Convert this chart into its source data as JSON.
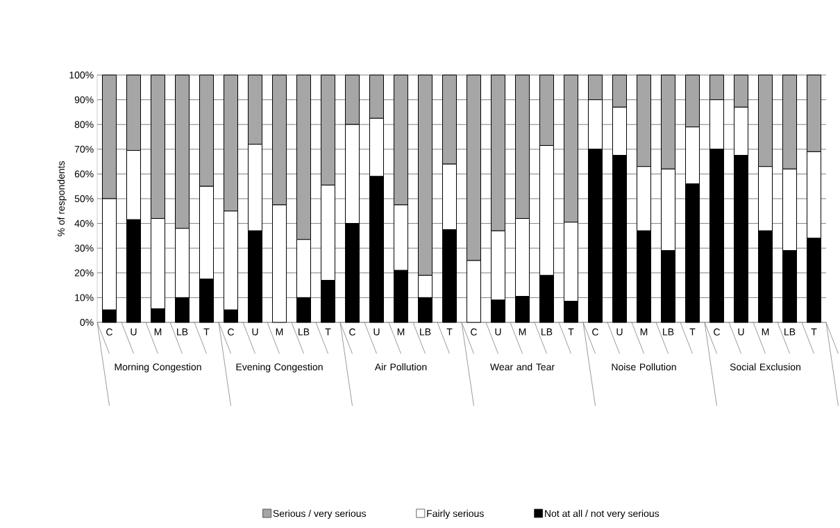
{
  "chart_data": {
    "type": "bar",
    "stacked": true,
    "ylabel": "% of respondents",
    "categories": [
      "C",
      "U",
      "M",
      "LB",
      "T",
      "C",
      "U",
      "M",
      "LB",
      "T",
      "C",
      "U",
      "M",
      "LB",
      "T",
      "C",
      "U",
      "M",
      "LB",
      "T",
      "C",
      "U",
      "M",
      "LB",
      "T",
      "C",
      "U",
      "M",
      "LB",
      "T"
    ],
    "annotations": [
      "Morning Congestion",
      "Evening Congestion",
      "Air Pollution",
      "Wear and Tear",
      "Noise Pollution",
      "Social Exclusion"
    ],
    "series": [
      {
        "name": "Not at all / not very serious",
        "color": "#000000",
        "values": [
          5,
          41.5,
          5.5,
          10,
          17.5,
          5,
          37,
          0,
          10,
          17,
          40,
          59,
          21,
          10,
          37.5,
          0,
          9,
          10.5,
          19,
          8.5,
          70,
          67.5,
          37,
          29,
          56,
          70,
          67.5,
          37,
          29,
          34
        ]
      },
      {
        "name": "Fairly serious",
        "color": "#ffffff",
        "values": [
          45,
          28,
          36.5,
          28,
          37.5,
          40,
          35,
          47.5,
          23.5,
          38.5,
          40,
          23.5,
          26.5,
          9,
          26.5,
          25,
          28,
          31.5,
          52.5,
          32,
          20,
          19.5,
          26,
          33,
          23,
          20,
          19.5,
          26,
          33,
          35
        ]
      },
      {
        "name": "Serious / very serious",
        "color": "#a6a6a6",
        "values": [
          50,
          30.5,
          58,
          62,
          45,
          55,
          28,
          52.5,
          66.5,
          44.5,
          20,
          17.5,
          52.5,
          81,
          36,
          75,
          63,
          58,
          28.5,
          59.5,
          10,
          13,
          37,
          38,
          21,
          10,
          13,
          37,
          38,
          31
        ]
      }
    ],
    "ylim": [
      0,
      100
    ],
    "yticks": [
      {
        "value": 0,
        "label": "0%"
      },
      {
        "value": 10,
        "label": "10%"
      },
      {
        "value": 20,
        "label": "20%"
      },
      {
        "value": 30,
        "label": "30%"
      },
      {
        "value": 40,
        "label": "40%"
      },
      {
        "value": 50,
        "label": "50%"
      },
      {
        "value": 60,
        "label": "60%"
      },
      {
        "value": 70,
        "label": "70%"
      },
      {
        "value": 80,
        "label": "80%"
      },
      {
        "value": 90,
        "label": "90%"
      },
      {
        "value": 100,
        "label": "100%"
      }
    ],
    "grid": "y",
    "legend": "bottom"
  }
}
